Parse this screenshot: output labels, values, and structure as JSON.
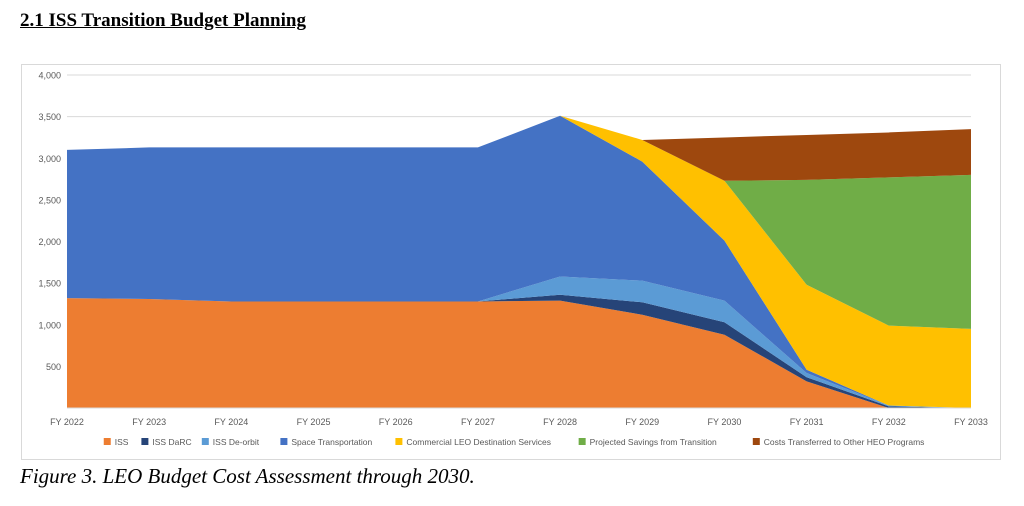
{
  "heading": "2.1 ISS Transition Budget Planning",
  "caption": "Figure 3.  LEO Budget Cost Assessment through 2030.",
  "chart_data": {
    "type": "area",
    "stacked": true,
    "categories": [
      "FY 2022",
      "FY 2023",
      "FY 2024",
      "FY 2025",
      "FY 2026",
      "FY 2027",
      "FY 2028",
      "FY 2029",
      "FY 2030",
      "FY 2031",
      "FY 2032",
      "FY 2033"
    ],
    "y_ticks": [
      "",
      "500",
      "1,000",
      "1,500",
      "2,000",
      "2,500",
      "3,000",
      "3,500",
      "4,000"
    ],
    "ylim": [
      0,
      4000
    ],
    "grid": true,
    "legend_position": "bottom",
    "series": [
      {
        "name": "ISS",
        "color": "#ED7D31",
        "values": [
          1320,
          1310,
          1280,
          1280,
          1280,
          1280,
          1290,
          1120,
          880,
          320,
          0,
          0
        ]
      },
      {
        "name": "ISS DaRC",
        "color": "#264478",
        "values": [
          0,
          0,
          0,
          0,
          0,
          0,
          70,
          150,
          150,
          50,
          20,
          0
        ]
      },
      {
        "name": "ISS De-orbit",
        "color": "#5B9BD5",
        "values": [
          0,
          0,
          0,
          0,
          0,
          0,
          220,
          260,
          260,
          50,
          10,
          0
        ]
      },
      {
        "name": "Space Transportation",
        "color": "#4472C4",
        "values": [
          1780,
          1820,
          1850,
          1850,
          1850,
          1850,
          1930,
          1430,
          720,
          40,
          0,
          0
        ]
      },
      {
        "name": "Commercial LEO Destination Services",
        "color": "#FFC000",
        "values": [
          0,
          0,
          0,
          0,
          0,
          0,
          0,
          260,
          720,
          1020,
          960,
          950
        ]
      },
      {
        "name": "Projected Savings from Transition",
        "color": "#70AD47",
        "values": [
          0,
          0,
          0,
          0,
          0,
          0,
          0,
          0,
          0,
          1260,
          1780,
          1850
        ]
      },
      {
        "name": "Costs Transferred to Other HEO Programs",
        "color": "#9E480E",
        "values": [
          0,
          0,
          0,
          0,
          0,
          0,
          0,
          0,
          520,
          540,
          540,
          550
        ]
      }
    ]
  }
}
